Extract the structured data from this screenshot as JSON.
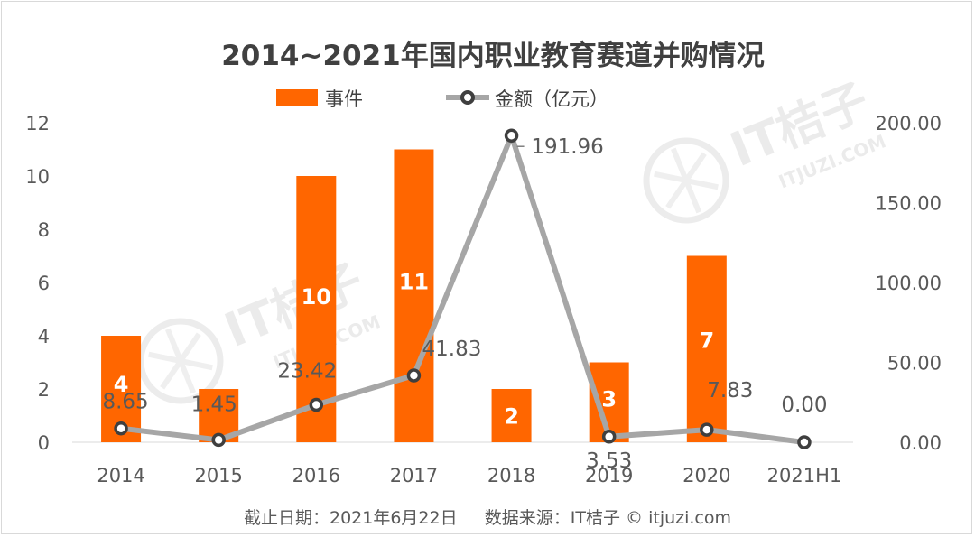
{
  "chart_data": {
    "type": "bar",
    "title": "2014~2021年国内职业教育赛道并购情况",
    "categories": [
      "2014",
      "2015",
      "2016",
      "2017",
      "2018",
      "2019",
      "2020",
      "2021H1"
    ],
    "series": [
      {
        "name": "事件",
        "type": "bar",
        "axis": "left",
        "color": "#ff6600",
        "values": [
          4,
          2,
          10,
          11,
          2,
          3,
          7,
          0
        ],
        "data_labels": [
          "4",
          "",
          "10",
          "11",
          "2",
          "3",
          "7",
          ""
        ]
      },
      {
        "name": "金额（亿元）",
        "type": "line",
        "axis": "right",
        "color": "#a6a6a6",
        "values": [
          8.65,
          1.45,
          23.42,
          41.83,
          191.96,
          3.53,
          7.83,
          0.0
        ],
        "data_labels": [
          "8.65",
          "1.45",
          "23.42",
          "41.83",
          "191.96",
          "3.53",
          "7.83",
          "0.00"
        ]
      }
    ],
    "y_left": {
      "range": [
        0,
        12
      ],
      "ticks": [
        "0",
        "2",
        "4",
        "6",
        "8",
        "10",
        "12"
      ]
    },
    "y_right": {
      "range": [
        0,
        200
      ],
      "ticks": [
        "0.00",
        "50.00",
        "100.00",
        "150.00",
        "200.00"
      ]
    },
    "grid": false,
    "legend": "top-center"
  },
  "watermark": {
    "brand": "IT桔子",
    "site": "ITJUZI.COM"
  },
  "footer": {
    "text": "截止日期：2021年6月22日     数据来源：IT桔子 © itjuzi.com"
  }
}
